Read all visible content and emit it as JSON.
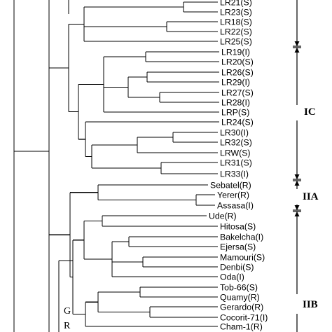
{
  "leaves": [
    "LR21(S)",
    "LR23(S)",
    "LR18(S)",
    "LR22(S)",
    "LR25(S)",
    "LR19(I)",
    "LR20(S)",
    "LR26(S)",
    "LR29(I)",
    "LR27(S)",
    "LR28(I)",
    "LRP(S)",
    "LR24(S)",
    "LR30(I)",
    "LR32(S)",
    "LRW(S)",
    "LR31(S)",
    "LR33(I)",
    "Sebatel(R)",
    "Yerer(R)",
    "Assasa(I)",
    "Ude(R)",
    "Hitosa(S)",
    "Bakelcha(I)",
    "Ejersa(S)",
    "Mamouri(S)",
    "Denbi(S)",
    "Oda(I)",
    "Tob-66(S)",
    "Quamy(R)",
    "Gerardo(R)",
    "Cocorit-71(I)",
    "Cham-1(R)"
  ],
  "groups": [
    {
      "label": "IC"
    },
    {
      "label": "IIA"
    },
    {
      "label": "IIB"
    }
  ],
  "side_labels": [
    "G",
    "R"
  ]
}
